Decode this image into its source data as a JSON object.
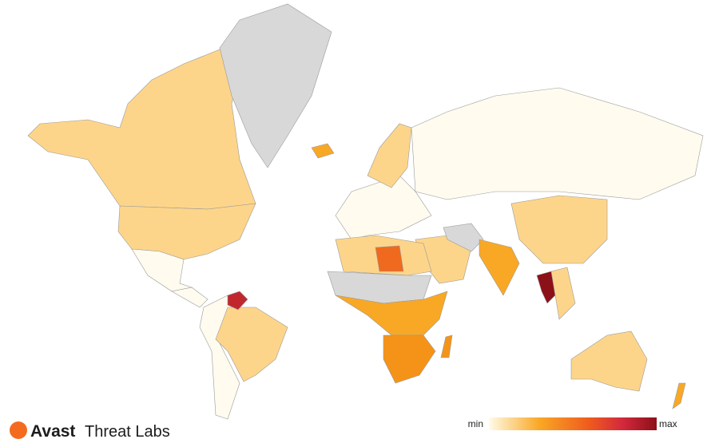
{
  "brand": {
    "name": "Avast",
    "product": "Threat Labs"
  },
  "legend": {
    "min_label": "min",
    "max_label": "max"
  }
}
